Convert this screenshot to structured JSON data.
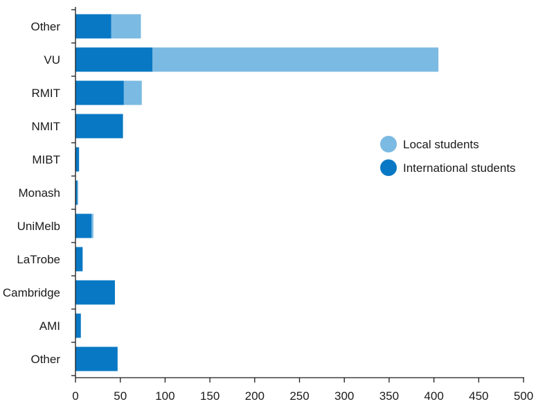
{
  "chart_data": {
    "type": "bar",
    "orientation": "horizontal",
    "stacked": true,
    "categories": [
      "Other",
      "VU",
      "RMIT",
      "NMIT",
      "MIBT",
      "Monash",
      "UniMelb",
      "LaTrobe",
      "Cambridge",
      "AMI",
      "Other"
    ],
    "series": [
      {
        "name": "International students",
        "color": "#0878c4",
        "values": [
          40,
          86,
          54,
          53,
          4,
          2,
          18,
          8,
          44,
          6,
          47
        ]
      },
      {
        "name": "Local students",
        "color": "#7bbae2",
        "values": [
          33,
          319,
          20,
          0,
          0,
          1,
          2,
          0,
          0,
          0,
          0
        ]
      }
    ],
    "legend": {
      "position": "right-middle",
      "entries": [
        "Local students",
        "International students"
      ]
    },
    "xlim": [
      0,
      500
    ],
    "xticks": [
      0,
      50,
      100,
      150,
      200,
      250,
      300,
      350,
      400,
      450,
      500
    ],
    "grid": false,
    "title": "",
    "xlabel": "",
    "ylabel": ""
  }
}
